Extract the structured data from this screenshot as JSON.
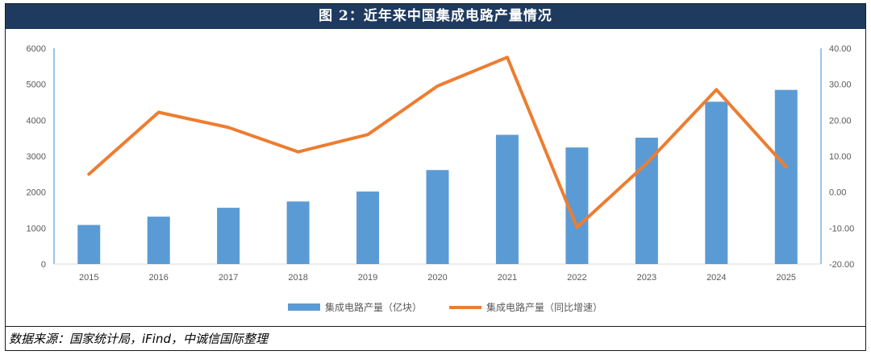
{
  "title": "图 2：近年来中国集成电路产量情况",
  "source": "数据来源：国家统计局，iFind，中诚信国际整理",
  "colors": {
    "bar": "#5b9bd5",
    "line": "#ed7d31",
    "title_bg": "#1f3a5f",
    "axis": "#5b9bd5"
  },
  "chart_data": {
    "type": "bar",
    "categories": [
      "2015",
      "2016",
      "2017",
      "2018",
      "2019",
      "2020",
      "2021",
      "2022",
      "2023",
      "2024",
      "2025"
    ],
    "series": [
      {
        "name": "集成电路产量（亿块）",
        "type": "bar",
        "axis": "left",
        "values": [
          1087,
          1318,
          1565,
          1740,
          2018,
          2614,
          3594,
          3242,
          3514,
          4514,
          4843
        ]
      },
      {
        "name": "集成电路产量（同比增速）",
        "type": "line",
        "axis": "right",
        "values": [
          5.0,
          22.2,
          18.0,
          11.2,
          16.0,
          29.5,
          37.5,
          -9.8,
          8.0,
          28.5,
          7.0
        ]
      }
    ],
    "ylim": [
      0,
      6000
    ],
    "yticks": [
      "0",
      "1000",
      "2000",
      "3000",
      "4000",
      "5000",
      "6000"
    ],
    "y2lim": [
      -20,
      40
    ],
    "y2ticks": [
      "-20.00",
      "-10.00",
      "0.00",
      "10.00",
      "20.00",
      "30.00",
      "40.00"
    ],
    "grid": false,
    "legend": "bottom"
  }
}
